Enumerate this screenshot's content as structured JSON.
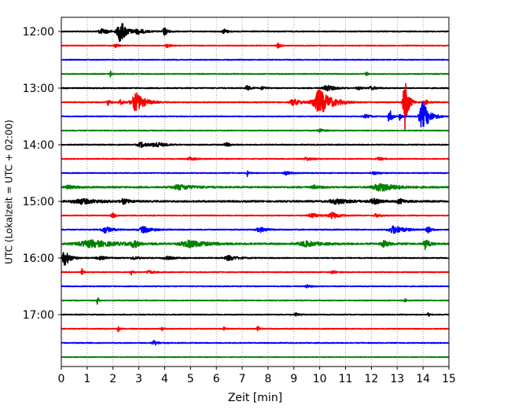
{
  "chart_data": {
    "type": "line",
    "title": "",
    "xlabel": "Zeit  [min]",
    "ylabel": "UTC (Lokalzeit = UTC + 02:00)",
    "xlim": [
      0,
      15
    ],
    "x_ticks": [
      0,
      1,
      2,
      3,
      4,
      5,
      6,
      7,
      8,
      9,
      10,
      11,
      12,
      13,
      14,
      15
    ],
    "y_tick_labels": [
      "12:00",
      "13:00",
      "14:00",
      "15:00",
      "16:00",
      "17:00"
    ],
    "grid": "vertical dotted",
    "trace_colors": [
      "#000000",
      "#ff0000",
      "#0000ff",
      "#008000"
    ],
    "traces": [
      {
        "start": "12:00",
        "noise": 0.6,
        "events": [
          {
            "t": 1.6,
            "amp": 3,
            "dur": 0.5
          },
          {
            "t": 2.3,
            "amp": 14,
            "dur": 0.35
          },
          {
            "t": 3.0,
            "amp": 3,
            "dur": 0.4
          },
          {
            "t": 4.0,
            "amp": 5,
            "dur": 0.2
          },
          {
            "t": 6.3,
            "amp": 3,
            "dur": 0.2
          }
        ]
      },
      {
        "start": "12:15",
        "noise": 0.5,
        "events": [
          {
            "t": 2.1,
            "amp": 2,
            "dur": 0.2
          },
          {
            "t": 4.1,
            "amp": 2,
            "dur": 0.2
          },
          {
            "t": 8.4,
            "amp": 3,
            "dur": 0.15
          }
        ]
      },
      {
        "start": "12:30",
        "noise": 0.5,
        "events": []
      },
      {
        "start": "12:45",
        "noise": 0.5,
        "events": [
          {
            "t": 1.9,
            "amp": 4,
            "dur": 0.1
          },
          {
            "t": 11.8,
            "amp": 3,
            "dur": 0.1
          }
        ]
      },
      {
        "start": "13:00",
        "noise": 0.6,
        "events": [
          {
            "t": 7.2,
            "amp": 3,
            "dur": 0.2
          },
          {
            "t": 7.8,
            "amp": 2,
            "dur": 0.2
          },
          {
            "t": 10.3,
            "amp": 4,
            "dur": 0.4
          },
          {
            "t": 11.5,
            "amp": 2,
            "dur": 0.2
          },
          {
            "t": 12.0,
            "amp": 2,
            "dur": 0.3
          }
        ]
      },
      {
        "start": "13:15",
        "noise": 0.6,
        "events": [
          {
            "t": 1.8,
            "amp": 4,
            "dur": 0.15
          },
          {
            "t": 2.3,
            "amp": 3,
            "dur": 0.2
          },
          {
            "t": 2.9,
            "amp": 12,
            "dur": 0.5
          },
          {
            "t": 9.0,
            "amp": 4,
            "dur": 0.4
          },
          {
            "t": 10.0,
            "amp": 16,
            "dur": 0.7
          },
          {
            "t": 13.3,
            "amp": 34,
            "dur": 0.2
          },
          {
            "t": 14.1,
            "amp": 3,
            "dur": 0.2
          }
        ]
      },
      {
        "start": "13:30",
        "noise": 0.5,
        "events": [
          {
            "t": 11.8,
            "amp": 2,
            "dur": 0.3
          },
          {
            "t": 12.7,
            "amp": 10,
            "dur": 0.15
          },
          {
            "t": 13.1,
            "amp": 5,
            "dur": 0.1
          },
          {
            "t": 14.0,
            "amp": 18,
            "dur": 0.4
          }
        ]
      },
      {
        "start": "13:45",
        "noise": 0.5,
        "events": [
          {
            "t": 10.0,
            "amp": 2,
            "dur": 0.3
          }
        ]
      },
      {
        "start": "14:00",
        "noise": 0.6,
        "events": [
          {
            "t": 3.1,
            "amp": 3,
            "dur": 0.4
          },
          {
            "t": 3.7,
            "amp": 3,
            "dur": 0.5
          },
          {
            "t": 6.4,
            "amp": 2,
            "dur": 0.3
          }
        ]
      },
      {
        "start": "14:15",
        "noise": 0.5,
        "events": [
          {
            "t": 5.0,
            "amp": 2,
            "dur": 0.3
          },
          {
            "t": 9.5,
            "amp": 2,
            "dur": 0.4
          },
          {
            "t": 12.3,
            "amp": 2,
            "dur": 0.3
          }
        ]
      },
      {
        "start": "14:30",
        "noise": 0.5,
        "events": [
          {
            "t": 7.2,
            "amp": 4,
            "dur": 0.1
          },
          {
            "t": 8.7,
            "amp": 2,
            "dur": 0.3
          },
          {
            "t": 12.1,
            "amp": 2,
            "dur": 0.3
          }
        ]
      },
      {
        "start": "14:45",
        "noise": 0.9,
        "events": [
          {
            "t": 0.3,
            "amp": 2,
            "dur": 0.4
          },
          {
            "t": 4.6,
            "amp": 3,
            "dur": 0.8
          },
          {
            "t": 9.8,
            "amp": 2,
            "dur": 0.3
          },
          {
            "t": 12.4,
            "amp": 5,
            "dur": 0.9
          }
        ]
      },
      {
        "start": "15:00",
        "noise": 1.0,
        "events": [
          {
            "t": 0.8,
            "amp": 3,
            "dur": 1.0
          },
          {
            "t": 2.4,
            "amp": 3,
            "dur": 0.3
          },
          {
            "t": 10.7,
            "amp": 3,
            "dur": 0.8
          },
          {
            "t": 12.1,
            "amp": 3,
            "dur": 0.4
          },
          {
            "t": 13.1,
            "amp": 3,
            "dur": 0.3
          }
        ]
      },
      {
        "start": "15:15",
        "noise": 0.5,
        "events": [
          {
            "t": 2.0,
            "amp": 3,
            "dur": 0.2
          },
          {
            "t": 9.7,
            "amp": 3,
            "dur": 0.4
          },
          {
            "t": 10.5,
            "amp": 4,
            "dur": 0.4
          },
          {
            "t": 12.2,
            "amp": 2,
            "dur": 0.3
          }
        ]
      },
      {
        "start": "15:30",
        "noise": 0.6,
        "events": [
          {
            "t": 1.7,
            "amp": 4,
            "dur": 0.4
          },
          {
            "t": 3.2,
            "amp": 4,
            "dur": 0.5
          },
          {
            "t": 7.7,
            "amp": 3,
            "dur": 0.4
          },
          {
            "t": 12.9,
            "amp": 5,
            "dur": 0.6
          },
          {
            "t": 14.2,
            "amp": 4,
            "dur": 0.2
          }
        ]
      },
      {
        "start": "15:45",
        "noise": 1.0,
        "events": [
          {
            "t": 1.2,
            "amp": 4,
            "dur": 1.5
          },
          {
            "t": 2.8,
            "amp": 6,
            "dur": 0.2
          },
          {
            "t": 5.0,
            "amp": 4,
            "dur": 1.0
          },
          {
            "t": 9.5,
            "amp": 3,
            "dur": 0.8
          },
          {
            "t": 12.5,
            "amp": 4,
            "dur": 0.3
          },
          {
            "t": 14.1,
            "amp": 7,
            "dur": 0.2
          }
        ]
      },
      {
        "start": "16:00",
        "noise": 0.6,
        "events": [
          {
            "t": 0.15,
            "amp": 10,
            "dur": 0.3
          },
          {
            "t": 1.5,
            "amp": 2,
            "dur": 0.4
          },
          {
            "t": 2.8,
            "amp": 2,
            "dur": 0.3
          },
          {
            "t": 4.1,
            "amp": 2,
            "dur": 0.4
          },
          {
            "t": 6.5,
            "amp": 3,
            "dur": 0.5
          }
        ]
      },
      {
        "start": "16:15",
        "noise": 0.5,
        "events": [
          {
            "t": 0.8,
            "amp": 4,
            "dur": 0.1
          },
          {
            "t": 2.7,
            "amp": 4,
            "dur": 0.1
          },
          {
            "t": 3.4,
            "amp": 2,
            "dur": 0.3
          },
          {
            "t": 10.5,
            "amp": 2,
            "dur": 0.2
          }
        ]
      },
      {
        "start": "16:30",
        "noise": 0.5,
        "events": [
          {
            "t": 9.5,
            "amp": 2,
            "dur": 0.2
          }
        ]
      },
      {
        "start": "16:45",
        "noise": 0.5,
        "events": [
          {
            "t": 1.4,
            "amp": 5,
            "dur": 0.08
          },
          {
            "t": 13.3,
            "amp": 2,
            "dur": 0.1
          }
        ]
      },
      {
        "start": "17:00",
        "noise": 0.5,
        "events": [
          {
            "t": 9.1,
            "amp": 2,
            "dur": 0.2
          },
          {
            "t": 14.2,
            "amp": 3,
            "dur": 0.1
          }
        ]
      },
      {
        "start": "17:15",
        "noise": 0.5,
        "events": [
          {
            "t": 2.2,
            "amp": 4,
            "dur": 0.08
          },
          {
            "t": 3.9,
            "amp": 3,
            "dur": 0.1
          },
          {
            "t": 6.3,
            "amp": 2,
            "dur": 0.1
          },
          {
            "t": 7.6,
            "amp": 4,
            "dur": 0.1
          }
        ]
      },
      {
        "start": "17:30",
        "noise": 0.5,
        "events": [
          {
            "t": 3.6,
            "amp": 3,
            "dur": 0.25
          }
        ]
      },
      {
        "start": "17:45",
        "noise": 0.4,
        "events": []
      }
    ]
  }
}
